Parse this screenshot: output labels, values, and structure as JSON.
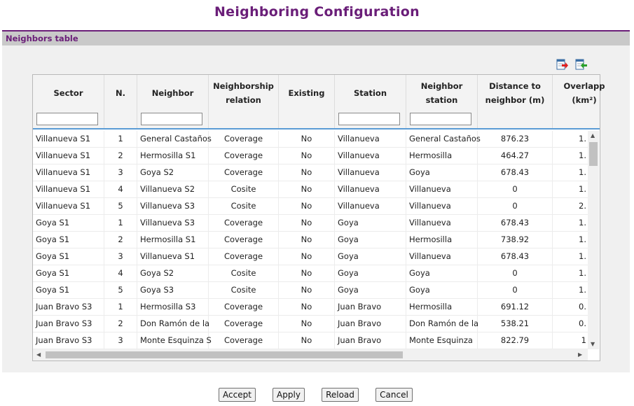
{
  "page_title": "Neighboring Configuration",
  "panel_title": "Neighbors table",
  "toolbar": {
    "export_icon": "export-icon",
    "import_icon": "import-icon"
  },
  "columns": [
    {
      "label": "Sector"
    },
    {
      "label": "N."
    },
    {
      "label": "Neighbor"
    },
    {
      "label": "Neighborship relation"
    },
    {
      "label": "Existing"
    },
    {
      "label": "Station"
    },
    {
      "label": "Neighbor station"
    },
    {
      "label": "Distance to neighbor (m)"
    },
    {
      "label": "Overlapp (km²)"
    }
  ],
  "filters": {
    "sector": "",
    "neighbor": "",
    "station": "",
    "neighbor_station": ""
  },
  "rows": [
    [
      "Villanueva S1",
      "1",
      "General Castaños",
      "Coverage",
      "No",
      "Villanueva",
      "General Castaños",
      "876.23",
      "1."
    ],
    [
      "Villanueva S1",
      "2",
      "Hermosilla S1",
      "Coverage",
      "No",
      "Villanueva",
      "Hermosilla",
      "464.27",
      "1."
    ],
    [
      "Villanueva S1",
      "3",
      "Goya S2",
      "Coverage",
      "No",
      "Villanueva",
      "Goya",
      "678.43",
      "1."
    ],
    [
      "Villanueva S1",
      "4",
      "Villanueva S2",
      "Cosite",
      "No",
      "Villanueva",
      "Villanueva",
      "0",
      "1."
    ],
    [
      "Villanueva S1",
      "5",
      "Villanueva S3",
      "Cosite",
      "No",
      "Villanueva",
      "Villanueva",
      "0",
      "2."
    ],
    [
      "Goya S1",
      "1",
      "Villanueva S3",
      "Coverage",
      "No",
      "Goya",
      "Villanueva",
      "678.43",
      "1."
    ],
    [
      "Goya S1",
      "2",
      "Hermosilla S1",
      "Coverage",
      "No",
      "Goya",
      "Hermosilla",
      "738.92",
      "1."
    ],
    [
      "Goya S1",
      "3",
      "Villanueva S1",
      "Coverage",
      "No",
      "Goya",
      "Villanueva",
      "678.43",
      "1."
    ],
    [
      "Goya S1",
      "4",
      "Goya S2",
      "Cosite",
      "No",
      "Goya",
      "Goya",
      "0",
      "1."
    ],
    [
      "Goya S1",
      "5",
      "Goya S3",
      "Cosite",
      "No",
      "Goya",
      "Goya",
      "0",
      "1."
    ],
    [
      "Juan Bravo S3",
      "1",
      "Hermosilla S3",
      "Coverage",
      "No",
      "Juan Bravo",
      "Hermosilla",
      "691.12",
      "0."
    ],
    [
      "Juan Bravo S3",
      "2",
      "Don Ramón de la",
      "Coverage",
      "No",
      "Juan Bravo",
      "Don Ramón de la",
      "538.21",
      "0."
    ],
    [
      "Juan Bravo S3",
      "3",
      "Monte Esquinza S",
      "Coverage",
      "No",
      "Juan Bravo",
      "Monte Esquinza",
      "822.79",
      "1"
    ]
  ],
  "buttons": {
    "accept": "Accept",
    "apply": "Apply",
    "reload": "Reload",
    "cancel": "Cancel"
  },
  "colors": {
    "accent": "#6a1e78",
    "header_bar": "#c9c9c9",
    "filter_underline": "#5b9bd5"
  }
}
